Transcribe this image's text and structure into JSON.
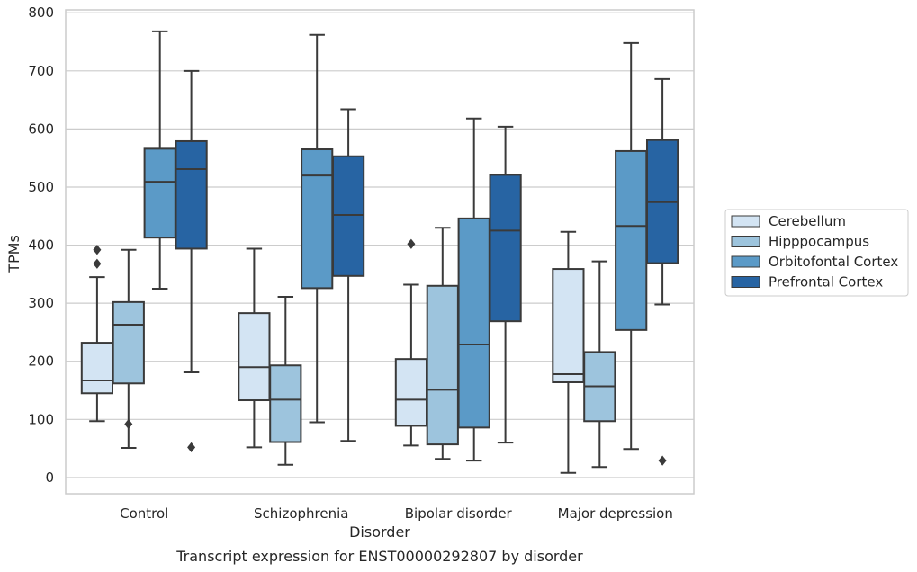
{
  "chart_data": {
    "type": "box",
    "caption": "Transcript expression for ENST00000292807 by disorder",
    "xlabel": "Disorder",
    "ylabel": "TPMs",
    "ylim": [
      -28,
      805
    ],
    "yticks": [
      0,
      100,
      200,
      300,
      400,
      500,
      600,
      700,
      800
    ],
    "grid": "horizontal",
    "legend_position": "right",
    "categories": [
      "Control",
      "Schizophrenia",
      "Bipolar disorder",
      "Major depression"
    ],
    "series": [
      {
        "name": "Cerebellum",
        "color": "#d3e4f3",
        "boxes": [
          {
            "whislo": 97,
            "q1": 145,
            "med": 167,
            "q3": 232,
            "whishi": 345,
            "fliers": [
              368,
              392
            ]
          },
          {
            "whislo": 52,
            "q1": 133,
            "med": 190,
            "q3": 283,
            "whishi": 394,
            "fliers": []
          },
          {
            "whislo": 55,
            "q1": 89,
            "med": 134,
            "q3": 204,
            "whishi": 332,
            "fliers": [
              402
            ]
          },
          {
            "whislo": 8,
            "q1": 164,
            "med": 178,
            "q3": 359,
            "whishi": 423,
            "fliers": []
          }
        ]
      },
      {
        "name": "Hipppocampus",
        "color": "#9dc4dd",
        "boxes": [
          {
            "whislo": 51,
            "q1": 162,
            "med": 263,
            "q3": 302,
            "whishi": 392,
            "fliers": [
              92
            ]
          },
          {
            "whislo": 22,
            "q1": 61,
            "med": 134,
            "q3": 193,
            "whishi": 311,
            "fliers": []
          },
          {
            "whislo": 32,
            "q1": 57,
            "med": 151,
            "q3": 330,
            "whishi": 430,
            "fliers": []
          },
          {
            "whislo": 18,
            "q1": 97,
            "med": 157,
            "q3": 216,
            "whishi": 372,
            "fliers": []
          }
        ]
      },
      {
        "name": "Orbitofontal Cortex",
        "color": "#5b9ac7",
        "boxes": [
          {
            "whislo": 325,
            "q1": 413,
            "med": 509,
            "q3": 566,
            "whishi": 768,
            "fliers": []
          },
          {
            "whislo": 95,
            "q1": 326,
            "med": 520,
            "q3": 565,
            "whishi": 762,
            "fliers": []
          },
          {
            "whislo": 29,
            "q1": 86,
            "med": 229,
            "q3": 446,
            "whishi": 618,
            "fliers": []
          },
          {
            "whislo": 49,
            "q1": 254,
            "med": 433,
            "q3": 562,
            "whishi": 748,
            "fliers": []
          }
        ]
      },
      {
        "name": "Prefrontal Cortex",
        "color": "#2764a3",
        "boxes": [
          {
            "whislo": 181,
            "q1": 394,
            "med": 531,
            "q3": 579,
            "whishi": 700,
            "fliers": [
              52
            ]
          },
          {
            "whislo": 63,
            "q1": 347,
            "med": 452,
            "q3": 553,
            "whishi": 634,
            "fliers": []
          },
          {
            "whislo": 60,
            "q1": 269,
            "med": 425,
            "q3": 521,
            "whishi": 604,
            "fliers": []
          },
          {
            "whislo": 298,
            "q1": 369,
            "med": 474,
            "q3": 581,
            "whishi": 686,
            "fliers": [
              29
            ]
          }
        ]
      }
    ]
  }
}
